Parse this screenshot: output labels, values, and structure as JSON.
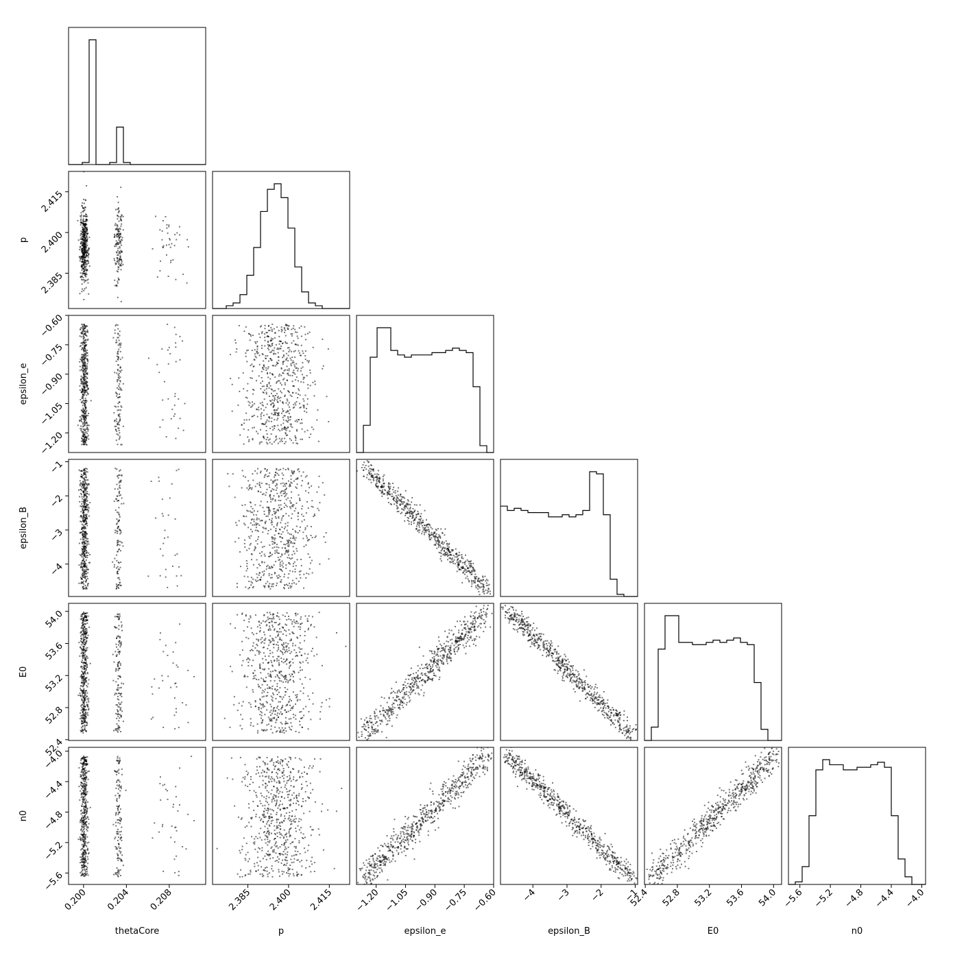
{
  "chart_data": {
    "type": "corner",
    "parameters": [
      "thetaCore",
      "p",
      "epsilon_e",
      "epsilon_B",
      "E0",
      "n0"
    ],
    "ranges": {
      "thetaCore": [
        0.1986,
        0.2114
      ],
      "p": [
        2.372,
        2.4225
      ],
      "epsilon_e": [
        -1.3,
        -0.6
      ],
      "epsilon_B": [
        -4.95,
        -0.93
      ],
      "E0": [
        52.39,
        54.1
      ],
      "n0": [
        -5.75,
        -3.95
      ]
    },
    "ticks": {
      "thetaCore": [
        0.2,
        0.204,
        0.208
      ],
      "p": [
        2.385,
        2.4,
        2.415
      ],
      "epsilon_e": [
        -1.2,
        -1.05,
        -0.9,
        -0.75,
        -0.6
      ],
      "epsilon_B": [
        -4,
        -3,
        -2,
        -1
      ],
      "E0": [
        52.4,
        52.8,
        53.2,
        53.6,
        54.0
      ],
      "n0": [
        -5.6,
        -5.2,
        -4.8,
        -4.4,
        -4.0
      ]
    },
    "tick_labels": {
      "thetaCore": [
        "0.200",
        "0.204",
        "0.208"
      ],
      "p": [
        "2.385",
        "2.400",
        "2.415"
      ],
      "epsilon_e": [
        "−1.20",
        "−1.05",
        "−0.90",
        "−0.75",
        "−0.60"
      ],
      "epsilon_B": [
        "−4",
        "−3",
        "−2",
        "−1"
      ],
      "E0": [
        "52.4",
        "52.8",
        "53.2",
        "53.6",
        "54.0"
      ],
      "n0": [
        "−5.6",
        "−5.2",
        "−4.8",
        "−4.4",
        "−4.0"
      ]
    },
    "histograms": {
      "thetaCore": {
        "bins": [
          0.1986,
          0.2114
        ],
        "counts": [
          0,
          0,
          1,
          60,
          0,
          0,
          1,
          18,
          1,
          0,
          0,
          0,
          0,
          0,
          0,
          0,
          0,
          0,
          0,
          0
        ]
      },
      "p": {
        "bins": [
          2.372,
          2.4225
        ],
        "counts": [
          0,
          0,
          1,
          2,
          5,
          12,
          22,
          35,
          43,
          45,
          40,
          29,
          15,
          6,
          2,
          1,
          0,
          0,
          0,
          0
        ]
      },
      "epsilon_e": {
        "bins": [
          -1.3,
          -0.6
        ],
        "counts": [
          0,
          12,
          42,
          55,
          55,
          45,
          43,
          42,
          43,
          43,
          43,
          44,
          44,
          45,
          46,
          45,
          44,
          29,
          3,
          0
        ]
      },
      "epsilon_B": {
        "bins": [
          -4.95,
          -0.93
        ],
        "counts": [
          42,
          40,
          41,
          40,
          39,
          39,
          39,
          37,
          37,
          38,
          37,
          38,
          40,
          58,
          57,
          38,
          8,
          1,
          0,
          0
        ]
      },
      "E0": {
        "bins": [
          52.39,
          54.1
        ],
        "counts": [
          0,
          6,
          41,
          56,
          56,
          44,
          44,
          43,
          43,
          44,
          45,
          44,
          45,
          46,
          44,
          43,
          26,
          5,
          0,
          0
        ]
      },
      "n0": {
        "bins": [
          -5.75,
          -3.95
        ],
        "counts": [
          0,
          1,
          7,
          27,
          45,
          49,
          47,
          47,
          45,
          45,
          46,
          46,
          47,
          48,
          46,
          27,
          10,
          3,
          0,
          0
        ]
      }
    },
    "modes": {
      "thetaCore": [
        0.2,
        0.2032,
        0.2079
      ],
      "mode_weights": [
        0.74,
        0.21,
        0.05
      ]
    },
    "correlations": {
      "epsilon_e|epsilon_B": -0.995,
      "epsilon_e|E0": 0.98,
      "epsilon_e|n0": 0.98,
      "epsilon_B|E0": -0.98,
      "epsilon_B|n0": -0.97,
      "E0|n0": 0.97,
      "p|thetaCore": 0.0
    },
    "xlabel_list": [
      "thetaCore",
      "p",
      "epsilon_e",
      "epsilon_B",
      "E0",
      "n0"
    ],
    "ylabel_list": [
      "p",
      "epsilon_e",
      "epsilon_B",
      "E0",
      "n0"
    ],
    "grid": false,
    "legend": "none"
  }
}
